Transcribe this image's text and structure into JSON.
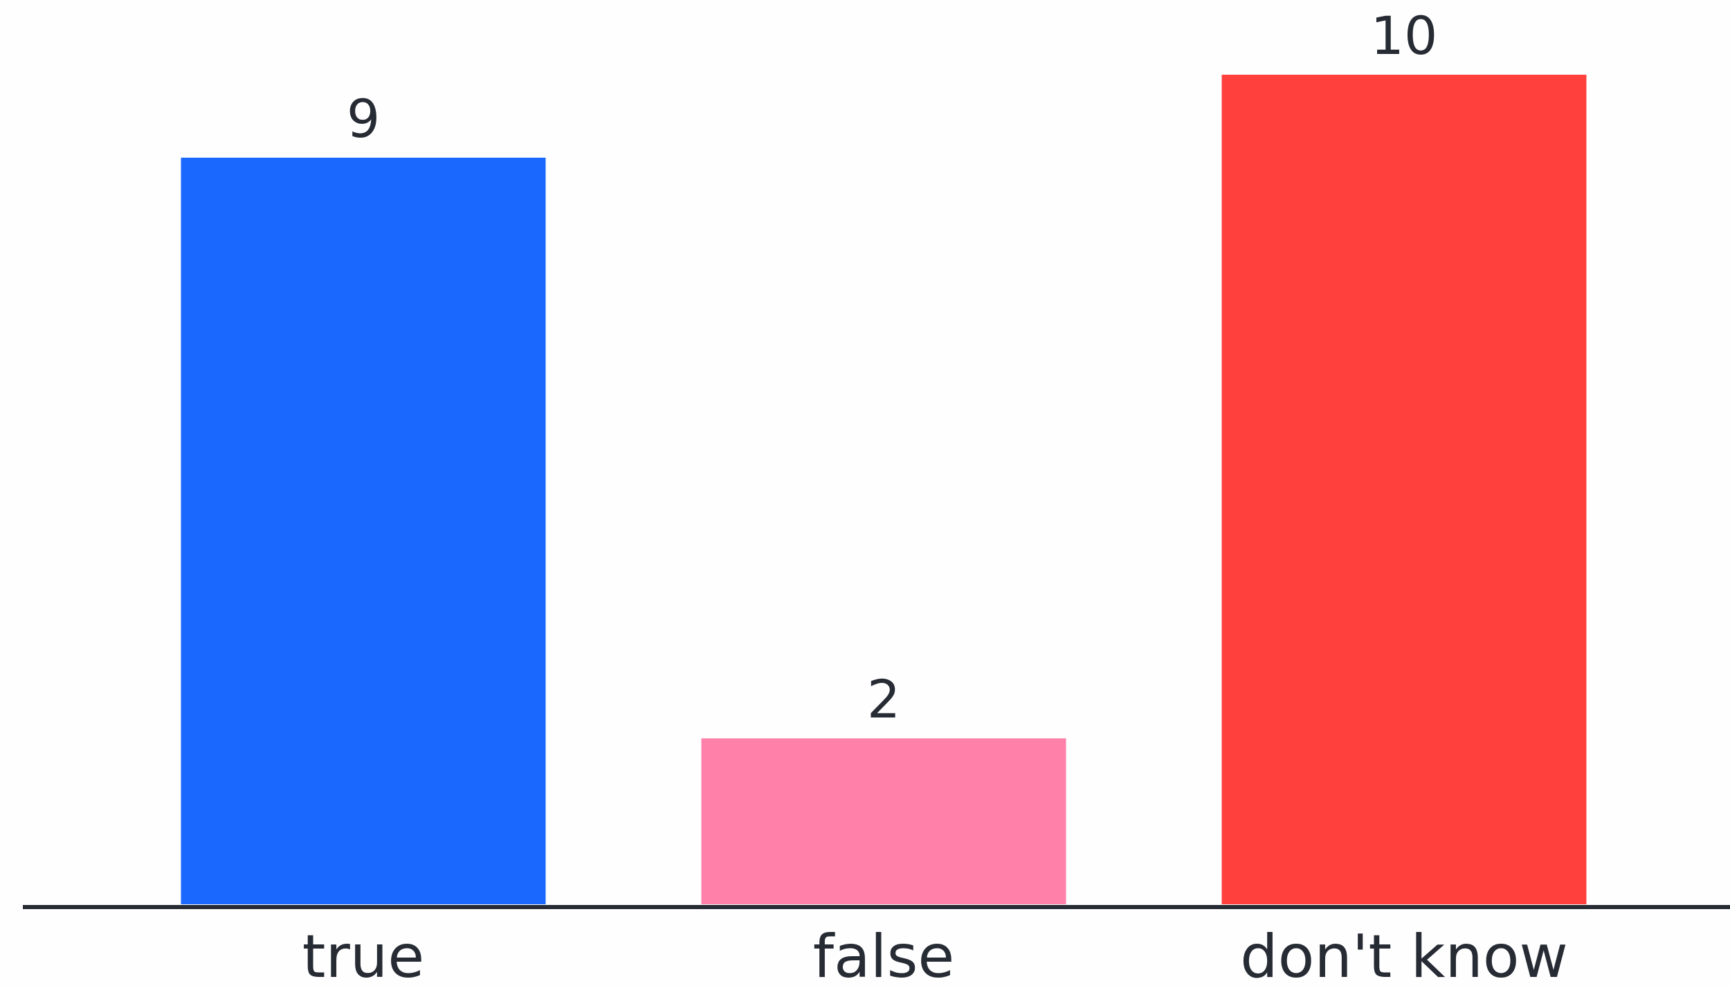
{
  "chart_data": {
    "type": "bar",
    "categories": [
      "true",
      "false",
      "don't know"
    ],
    "values": [
      9,
      2,
      10
    ],
    "colors": [
      "#1b68fe",
      "#ff80a8",
      "#ff403d"
    ],
    "data_labels": [
      "9",
      "2",
      "10"
    ],
    "title": "",
    "xlabel": "",
    "ylabel": "",
    "ylim": [
      0,
      10
    ],
    "grid": false,
    "legend": "none",
    "axis_color": "#262b34"
  }
}
